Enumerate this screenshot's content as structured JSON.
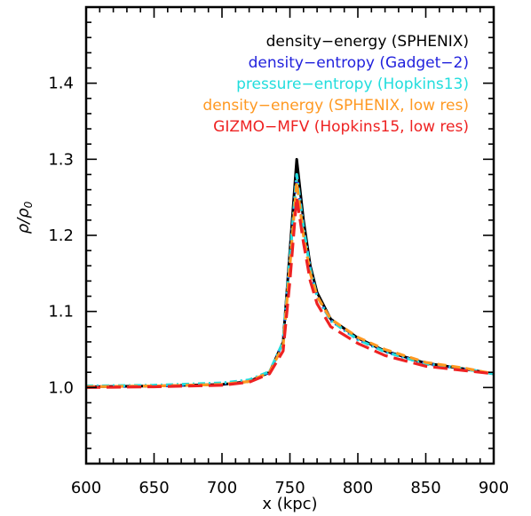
{
  "chart_data": {
    "type": "line",
    "title": "",
    "xlabel": "x (kpc)",
    "ylabel_main": "ρ/ρ",
    "ylabel_sub": "0",
    "xlim": [
      600,
      900
    ],
    "ylim": [
      0.9,
      1.5
    ],
    "xticks": [
      600,
      650,
      700,
      750,
      800,
      850,
      900
    ],
    "xtick_labels": [
      "600",
      "650",
      "700",
      "750",
      "800",
      "850",
      "900"
    ],
    "yticks": [
      1.0,
      1.1,
      1.2,
      1.3,
      1.4
    ],
    "ytick_labels": [
      "1.0",
      "1.1",
      "1.2",
      "1.3",
      "1.4"
    ],
    "grid": false,
    "legend_position": "top-right",
    "series": [
      {
        "name": "density−energy (SPHENIX)",
        "color": "#000000",
        "dash": "solid",
        "x": [
          600,
          650,
          700,
          720,
          735,
          745,
          750,
          755,
          760,
          765,
          770,
          780,
          800,
          820,
          850,
          880,
          900
        ],
        "y": [
          1.001,
          1.002,
          1.004,
          1.008,
          1.02,
          1.06,
          1.18,
          1.3,
          1.22,
          1.16,
          1.125,
          1.09,
          1.065,
          1.048,
          1.032,
          1.024,
          1.018
        ]
      },
      {
        "name": "density−entropy (Gadget−2)",
        "color": "#2222dd",
        "dash": "dot",
        "x": [
          600,
          650,
          700,
          720,
          735,
          745,
          750,
          755,
          760,
          765,
          770,
          780,
          800,
          820,
          850,
          880,
          900
        ],
        "y": [
          1.001,
          1.002,
          1.005,
          1.009,
          1.02,
          1.06,
          1.17,
          1.28,
          1.21,
          1.155,
          1.12,
          1.088,
          1.063,
          1.047,
          1.031,
          1.024,
          1.018
        ]
      },
      {
        "name": "pressure−entropy (Hopkins13)",
        "color": "#22dddd",
        "dash": "dashdot",
        "x": [
          600,
          650,
          700,
          720,
          735,
          745,
          750,
          755,
          760,
          765,
          770,
          780,
          800,
          820,
          850,
          865,
          880,
          900
        ],
        "y": [
          1.002,
          1.003,
          1.006,
          1.01,
          1.021,
          1.06,
          1.17,
          1.28,
          1.21,
          1.155,
          1.12,
          1.088,
          1.063,
          1.047,
          1.031,
          1.028,
          1.024,
          1.018
        ]
      },
      {
        "name": "density−energy (SPHENIX, low res)",
        "color": "#ff9922",
        "dash": "dash",
        "x": [
          600,
          650,
          700,
          720,
          735,
          745,
          750,
          755,
          760,
          765,
          770,
          780,
          800,
          820,
          850,
          880,
          900
        ],
        "y": [
          1.001,
          1.002,
          1.004,
          1.008,
          1.02,
          1.055,
          1.16,
          1.27,
          1.2,
          1.15,
          1.12,
          1.09,
          1.066,
          1.05,
          1.033,
          1.025,
          1.018
        ]
      },
      {
        "name": "GIZMO−MFV (Hopkins15, low res)",
        "color": "#ee2222",
        "dash": "longdash",
        "x": [
          600,
          650,
          700,
          720,
          735,
          745,
          750,
          755,
          760,
          765,
          770,
          780,
          800,
          820,
          850,
          880,
          900
        ],
        "y": [
          1.0,
          1.001,
          1.003,
          1.007,
          1.018,
          1.048,
          1.14,
          1.25,
          1.19,
          1.14,
          1.11,
          1.08,
          1.058,
          1.042,
          1.028,
          1.022,
          1.018
        ]
      }
    ]
  }
}
